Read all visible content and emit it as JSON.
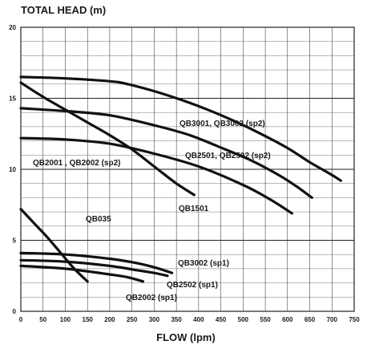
{
  "chart_data": {
    "type": "line",
    "title": "TOTAL HEAD (m)",
    "xlabel": "FLOW (lpm)",
    "ylabel": "",
    "xlim": [
      0,
      750
    ],
    "ylim": [
      0,
      20
    ],
    "x_ticks": [
      0,
      50,
      100,
      150,
      200,
      250,
      300,
      350,
      400,
      450,
      500,
      550,
      600,
      650,
      700,
      750
    ],
    "y_ticks": [
      0,
      5,
      10,
      15,
      20
    ],
    "major_gridlines_y": [
      5,
      10,
      15
    ],
    "grid": true,
    "colors": {
      "curve": "#111111",
      "grid": "#222222",
      "text": "#1a1a1a",
      "background": "#ffffff"
    },
    "series": [
      {
        "name": "QB3001, QB3002 (sp2)",
        "x": [
          0,
          100,
          200,
          240,
          300,
          360,
          420,
          480,
          540,
          600,
          650,
          700,
          720
        ],
        "y": [
          16.5,
          16.4,
          16.2,
          16.0,
          15.5,
          14.9,
          14.2,
          13.4,
          12.5,
          11.5,
          10.5,
          9.6,
          9.2
        ]
      },
      {
        "name": "QB2501, QB2502 (sp2)",
        "x": [
          0,
          100,
          200,
          300,
          380,
          460,
          520,
          580,
          620,
          655
        ],
        "y": [
          14.3,
          14.1,
          13.8,
          13.1,
          12.4,
          11.4,
          10.6,
          9.6,
          8.8,
          8.0
        ]
      },
      {
        "name": "QB2001 , QB2002 (sp2)",
        "x": [
          0,
          100,
          200,
          300,
          400,
          500,
          560,
          610
        ],
        "y": [
          12.2,
          12.1,
          11.8,
          11.1,
          10.2,
          8.9,
          7.9,
          6.9
        ]
      },
      {
        "name": "QB1501",
        "x": [
          0,
          50,
          100,
          150,
          200,
          250,
          300,
          350,
          390
        ],
        "y": [
          16.1,
          15.1,
          14.2,
          13.3,
          12.4,
          11.4,
          10.2,
          9.0,
          8.2
        ]
      },
      {
        "name": "QB035",
        "x": [
          0,
          30,
          60,
          90,
          120,
          150
        ],
        "y": [
          7.2,
          6.2,
          5.2,
          4.1,
          3.0,
          2.1
        ]
      },
      {
        "name": "QB3002 (sp1)",
        "x": [
          0,
          100,
          200,
          260,
          300,
          340
        ],
        "y": [
          4.1,
          4.0,
          3.7,
          3.4,
          3.1,
          2.7
        ]
      },
      {
        "name": "QB2502 (sp1)",
        "x": [
          0,
          100,
          200,
          260,
          300,
          330
        ],
        "y": [
          3.6,
          3.5,
          3.2,
          2.9,
          2.7,
          2.5
        ]
      },
      {
        "name": "QB2002 (sp1)",
        "x": [
          0,
          100,
          200,
          240,
          275
        ],
        "y": [
          3.2,
          3.0,
          2.6,
          2.4,
          2.1
        ]
      }
    ]
  }
}
